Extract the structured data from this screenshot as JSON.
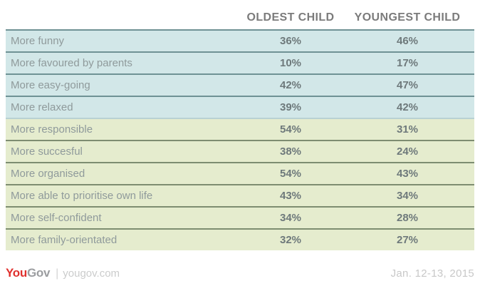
{
  "header": {
    "col_oldest": "OLDEST CHILD",
    "col_youngest": "YOUNGEST CHILD"
  },
  "table": {
    "rows": [
      {
        "label": "More funny",
        "oldest": "36%",
        "youngest": "46%",
        "group": "blue"
      },
      {
        "label": "More favoured by parents",
        "oldest": "10%",
        "youngest": "17%",
        "group": "blue"
      },
      {
        "label": "More easy-going",
        "oldest": "42%",
        "youngest": "47%",
        "group": "blue"
      },
      {
        "label": "More relaxed",
        "oldest": "39%",
        "youngest": "42%",
        "group": "blue"
      },
      {
        "label": "More responsible",
        "oldest": "54%",
        "youngest": "31%",
        "group": "green"
      },
      {
        "label": "More succesful",
        "oldest": "38%",
        "youngest": "24%",
        "group": "green"
      },
      {
        "label": "More organised",
        "oldest": "54%",
        "youngest": "43%",
        "group": "green"
      },
      {
        "label": "More able to prioritise own life",
        "oldest": "43%",
        "youngest": "34%",
        "group": "green"
      },
      {
        "label": "More self-confident",
        "oldest": "34%",
        "youngest": "28%",
        "group": "green"
      },
      {
        "label": "More family-orientated",
        "oldest": "32%",
        "youngest": "27%",
        "group": "green"
      }
    ]
  },
  "footer": {
    "brand_you": "You",
    "brand_gov": "Gov",
    "separator": "|",
    "site": "yougov.com",
    "date": "Jan. 12-13, 2015"
  },
  "colors": {
    "blue_row_bg": "#d2e7e8",
    "green_row_bg": "#e5ecce",
    "blue_divider": "#6f9295",
    "green_divider": "#7e8d71",
    "header_text": "#7b7b7b",
    "label_text": "#8f9a9b",
    "value_text": "#6e797b",
    "brand_red": "#e0312e",
    "brand_gray": "#9b9da0",
    "footer_light_gray": "#c8c8c8"
  },
  "chart_data": {
    "type": "table",
    "title": "",
    "categories": [
      "More funny",
      "More favoured by parents",
      "More easy-going",
      "More relaxed",
      "More responsible",
      "More succesful",
      "More organised",
      "More able to prioritise own life",
      "More self-confident",
      "More family-orientated"
    ],
    "series": [
      {
        "name": "OLDEST CHILD",
        "values": [
          36,
          10,
          42,
          39,
          54,
          38,
          54,
          43,
          34,
          32
        ]
      },
      {
        "name": "YOUNGEST CHILD",
        "values": [
          46,
          17,
          47,
          42,
          31,
          24,
          43,
          34,
          28,
          27
        ]
      }
    ],
    "unit": "%",
    "annotations": [
      "YouGov | yougov.com",
      "Jan. 12-13, 2015"
    ],
    "layout": {
      "row_groups": {
        "blue": [
          0,
          3
        ],
        "green": [
          4,
          9
        ]
      }
    }
  }
}
